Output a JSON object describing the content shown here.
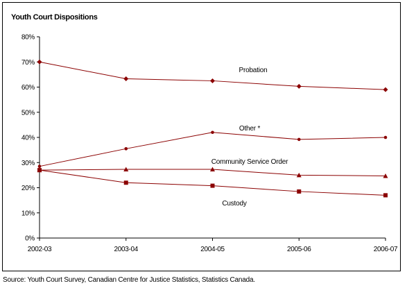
{
  "chart_data": {
    "type": "line",
    "title": "Youth Court Dispositions",
    "categories": [
      "2002-03",
      "2003-04",
      "2004-05",
      "2005-06",
      "2006-07"
    ],
    "ylim": [
      0,
      80
    ],
    "yticks": [
      0,
      10,
      20,
      30,
      40,
      50,
      60,
      70,
      80
    ],
    "ytick_labels": [
      "0%",
      "10%",
      "20%",
      "30%",
      "40%",
      "50%",
      "60%",
      "70%",
      "80%"
    ],
    "grid": false,
    "legend": "none (series labeled inline)",
    "color": "#8b0000",
    "series": [
      {
        "name": "Probation",
        "marker": "diamond",
        "values": [
          70,
          63.3,
          62.5,
          60.3,
          59
        ]
      },
      {
        "name": "Other *",
        "marker": "dot",
        "values": [
          28.5,
          35.5,
          42,
          39.2,
          40
        ]
      },
      {
        "name": "Community Service Order",
        "marker": "triangle",
        "values": [
          27,
          27.3,
          27.3,
          25,
          24.7
        ]
      },
      {
        "name": "Custody",
        "marker": "square",
        "values": [
          27,
          22,
          20.8,
          18.5,
          17
        ]
      }
    ]
  },
  "source": "Source:  Youth Court Survey, Canadian Centre for Justice Statistics, Statistics Canada."
}
